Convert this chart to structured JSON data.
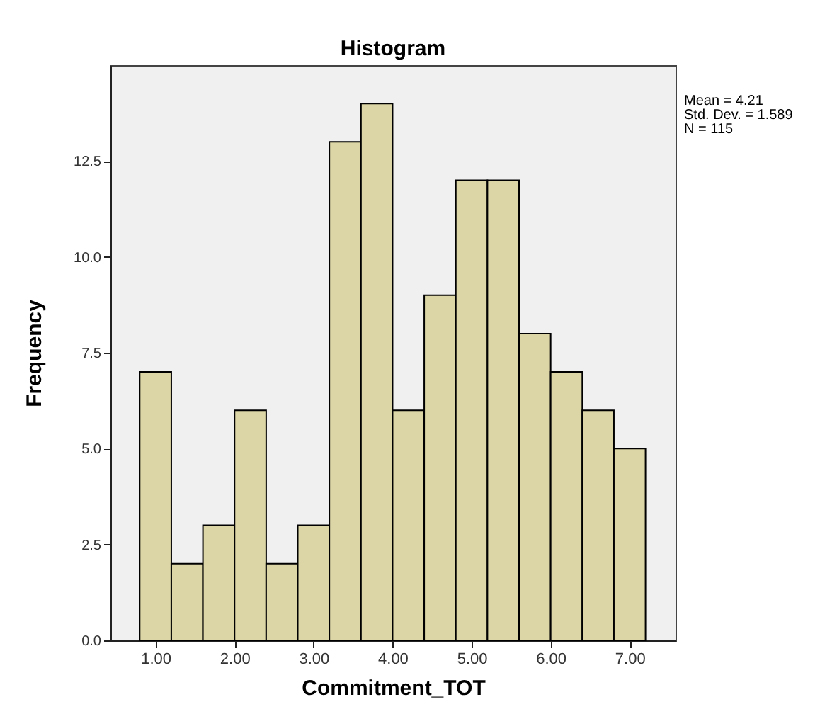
{
  "chart_data": {
    "type": "histogram",
    "title": "Histogram",
    "xlabel": "Commitment_TOT",
    "ylabel": "Frequency",
    "bins": [
      0.8,
      1.2,
      1.6,
      2.0,
      2.4,
      2.8,
      3.2,
      3.6,
      4.0,
      4.4,
      4.8,
      5.2,
      5.6,
      6.0,
      6.4,
      6.8,
      7.2
    ],
    "values": [
      7,
      2,
      3,
      6,
      2,
      3,
      13,
      14,
      6,
      9,
      12,
      12,
      8,
      7,
      6,
      5
    ],
    "color": "#dcd6a6",
    "xlim": [
      0.43,
      7.58
    ],
    "ylim": [
      0,
      15
    ],
    "xticks": [
      {
        "value": 1,
        "label": "1.00"
      },
      {
        "value": 2,
        "label": "2.00"
      },
      {
        "value": 3,
        "label": "3.00"
      },
      {
        "value": 4,
        "label": "4.00"
      },
      {
        "value": 5,
        "label": "5.00"
      },
      {
        "value": 6,
        "label": "6.00"
      },
      {
        "value": 7,
        "label": "7.00"
      }
    ],
    "yticks": [
      {
        "value": 0,
        "label": "0.0"
      },
      {
        "value": 2.5,
        "label": "2.5"
      },
      {
        "value": 5,
        "label": "5.0"
      },
      {
        "value": 7.5,
        "label": "7.5"
      },
      {
        "value": 10,
        "label": "10.0"
      },
      {
        "value": 12.5,
        "label": "12.5"
      }
    ],
    "annotations": [
      "Mean = 4.21",
      "Std. Dev. = 1.589",
      "N = 115"
    ],
    "grid": false
  }
}
